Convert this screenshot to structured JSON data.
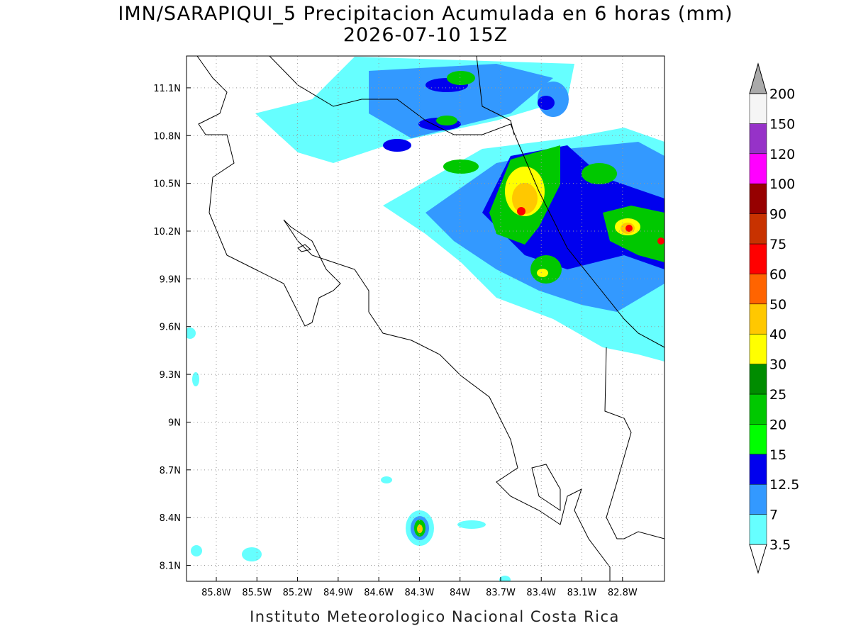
{
  "title": "IMN/SARAPIQUI_5 Precipitacion Acumulada en 6 horas (mm)",
  "subtitle": "2026-07-10 15Z",
  "lat_range": [
    8.0,
    11.3
  ],
  "lon_range": [
    -86.02,
    -82.49
  ],
  "lat_ticks": [
    {
      "value": 11.1,
      "label": "11.1N"
    },
    {
      "value": 10.8,
      "label": "10.8N"
    },
    {
      "value": 10.5,
      "label": "10.5N"
    },
    {
      "value": 10.2,
      "label": "10.2N"
    },
    {
      "value": 9.9,
      "label": "9.9N"
    },
    {
      "value": 9.6,
      "label": "9.6N"
    },
    {
      "value": 9.3,
      "label": "9.3N"
    },
    {
      "value": 9,
      "label": "9N"
    },
    {
      "value": 8.7,
      "label": "8.7N"
    },
    {
      "value": 8.4,
      "label": "8.4N"
    },
    {
      "value": 8.1,
      "label": "8.1N"
    }
  ],
  "lon_ticks": [
    {
      "value": -85.8,
      "label": "85.8W"
    },
    {
      "value": -85.5,
      "label": "85.5W"
    },
    {
      "value": -85.2,
      "label": "85.2W"
    },
    {
      "value": -84.9,
      "label": "84.9W"
    },
    {
      "value": -84.6,
      "label": "84.6W"
    },
    {
      "value": -84.3,
      "label": "84.3W"
    },
    {
      "value": -84,
      "label": "84W"
    },
    {
      "value": -83.7,
      "label": "83.7W"
    },
    {
      "value": -83.4,
      "label": "83.4W"
    },
    {
      "value": -83.1,
      "label": "83.1W"
    },
    {
      "value": -82.8,
      "label": "82.8W"
    }
  ],
  "colorbar": {
    "levels": [
      3.5,
      7,
      12.5,
      15,
      20,
      25,
      30,
      40,
      50,
      60,
      75,
      90,
      100,
      120,
      150,
      200
    ],
    "colors": [
      "#ffffff",
      "#66ffff",
      "#3399ff",
      "#0000ee",
      "#00ff00",
      "#00c800",
      "#008c00",
      "#ffff00",
      "#ffc800",
      "#ff6400",
      "#ff0000",
      "#c83200",
      "#960000",
      "#ff00ff",
      "#9632c8",
      "#f5f5f5",
      "#aaaaaa"
    ]
  },
  "footer": "Instituto Meteorologico Nacional Costa Rica"
}
